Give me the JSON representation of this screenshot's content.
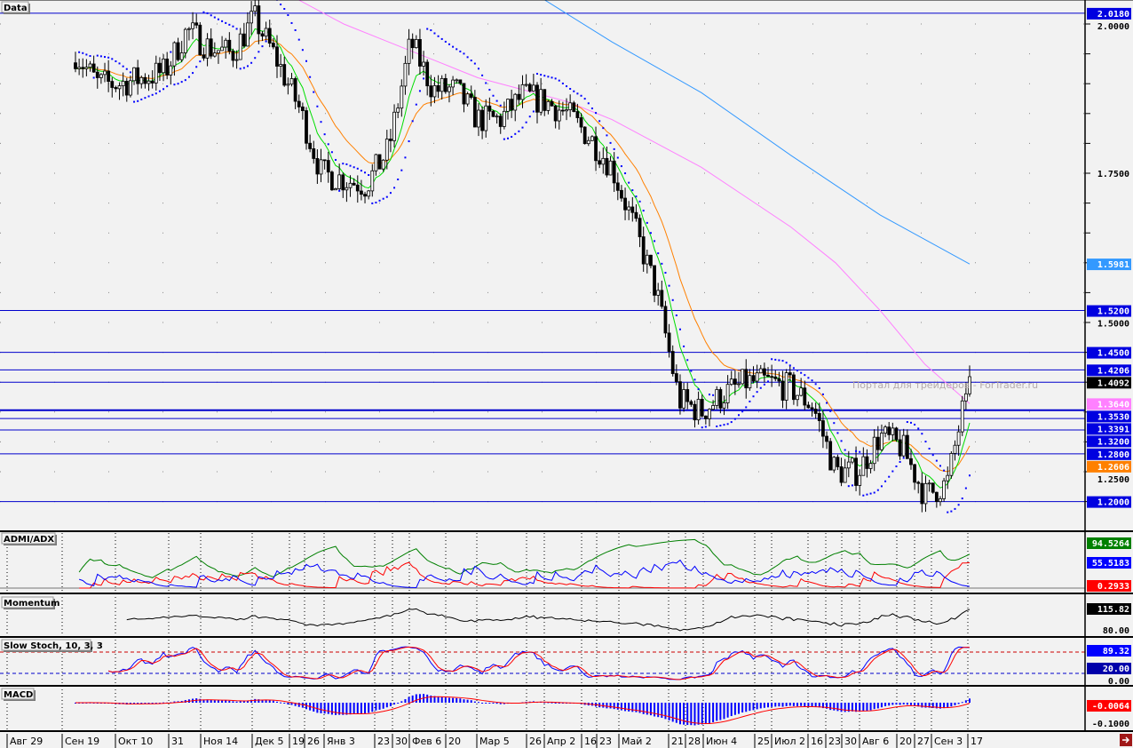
{
  "panels": {
    "main_label": "Data",
    "adx_label": "ADMI/ADX",
    "momentum_label": "Momentum",
    "stoch_label": "Slow Stoch, 10, 3, 3",
    "macd_label": "MACD"
  },
  "watermark": "Портал для трейдеров - ForTrader.ru",
  "colors": {
    "background": "#f2f2f2",
    "level_line": "#0000cc",
    "ema_fast": "#00dd00",
    "ema_slow": "#ff8000",
    "ma_pink": "#ff80ff",
    "ma_blue": "#3399ff",
    "sar": "#0000ff"
  },
  "chart_data": {
    "type": "candlestick",
    "title": "",
    "x_tick_labels": [
      "Авг 29",
      "Сен 19",
      "Окт 10",
      "31",
      "Ноя 14",
      "Дек 5",
      "19",
      "26",
      "Янв 3",
      "23",
      "30",
      "Фев 6",
      "20",
      "Мар 5",
      "26",
      "Апр 2",
      "16",
      "23",
      "Май 2",
      "21",
      "28",
      "Июн 4",
      "25",
      "Июл 2",
      "16",
      "23",
      "30",
      "Авг 6",
      "20",
      "27",
      "Сен 3",
      "17"
    ],
    "y_tick_labels": [
      "2.0000",
      "1.7500",
      "1.5000",
      "1.2500"
    ],
    "ylim": [
      1.18,
      2.04
    ],
    "close_path": [
      1.95,
      1.9,
      1.9,
      1.91,
      1.92,
      1.99,
      1.96,
      1.95,
      2.01,
      1.94,
      1.86,
      1.75,
      1.74,
      1.73,
      1.79,
      1.97,
      1.89,
      1.89,
      1.84,
      1.84,
      1.88,
      1.87,
      1.85,
      1.81,
      1.76,
      1.66,
      1.55,
      1.37,
      1.35,
      1.38,
      1.4,
      1.4,
      1.39,
      1.36,
      1.25,
      1.25,
      1.31,
      1.29,
      1.21,
      1.23,
      1.41
    ],
    "ma_pink": [
      null,
      null,
      null,
      null,
      null,
      null,
      null,
      null,
      null,
      null,
      2.04,
      null,
      2.0,
      null,
      1.97,
      null,
      1.94,
      null,
      1.91,
      null,
      1.89,
      null,
      1.87,
      null,
      1.84,
      null,
      1.8,
      null,
      1.76,
      null,
      1.71,
      null,
      1.66,
      null,
      1.6,
      null,
      1.52,
      null,
      1.43,
      null,
      1.364
    ],
    "ma_blue": [
      null,
      null,
      null,
      null,
      null,
      null,
      null,
      null,
      null,
      null,
      null,
      null,
      null,
      null,
      null,
      null,
      null,
      null,
      null,
      null,
      null,
      2.04,
      null,
      null,
      1.97,
      null,
      null,
      null,
      1.885,
      null,
      null,
      null,
      1.78,
      null,
      null,
      null,
      1.68,
      null,
      null,
      null,
      1.598
    ],
    "level_lines": [
      2.018,
      1.52,
      1.45,
      1.4206,
      1.4,
      1.353,
      1.3391,
      1.32,
      1.28,
      1.2
    ],
    "price_tags": [
      {
        "text": "2.0180",
        "value": 2.018,
        "color": "#0000e0"
      },
      {
        "text": "1.5981",
        "value": 1.5981,
        "color": "#3399ff"
      },
      {
        "text": "1.5200",
        "value": 1.52,
        "color": "#0000e0"
      },
      {
        "text": "1.4500",
        "value": 1.45,
        "color": "#0000e0"
      },
      {
        "text": "1.4206",
        "value": 1.4206,
        "color": "#0000e0"
      },
      {
        "text": "1.4092",
        "value": 1.4092,
        "color": "#000000"
      },
      {
        "text": "1.3640",
        "value": 1.364,
        "color": "#ff80ff"
      },
      {
        "text": "1.3530",
        "value": 1.353,
        "color": "#0000e0"
      },
      {
        "text": "1.3391",
        "value": 1.3391,
        "color": "#0000e0"
      },
      {
        "text": "1.3200",
        "value": 1.32,
        "color": "#0000e0"
      },
      {
        "text": "1.2800",
        "value": 1.28,
        "color": "#0000e0"
      },
      {
        "text": "1.2606",
        "value": 1.2606,
        "color": "#ff8000"
      },
      {
        "text": "1.2000",
        "value": 1.2,
        "color": "#0000e0"
      }
    ],
    "indicator_tags": {
      "adx_plus": {
        "text": "94.5264",
        "color": "#008000"
      },
      "adx_minus": {
        "text": "55.5183",
        "color": "#0000ff"
      },
      "adx": {
        "text": "0.2933",
        "color": "#ff0000"
      },
      "momentum": {
        "text": "115.82",
        "color": "#000000"
      },
      "momentum_axis": "80.00",
      "stoch": {
        "text": "89.32",
        "color": "#0000ff"
      },
      "stoch_low": {
        "text": "20.00",
        "color": "#0000aa"
      },
      "stoch_axis": "0.00",
      "macd": {
        "text": "-0.0064",
        "color": "#ff0000"
      },
      "macd_axis": "-0.1000"
    },
    "stoch_levels": [
      80,
      20
    ]
  }
}
